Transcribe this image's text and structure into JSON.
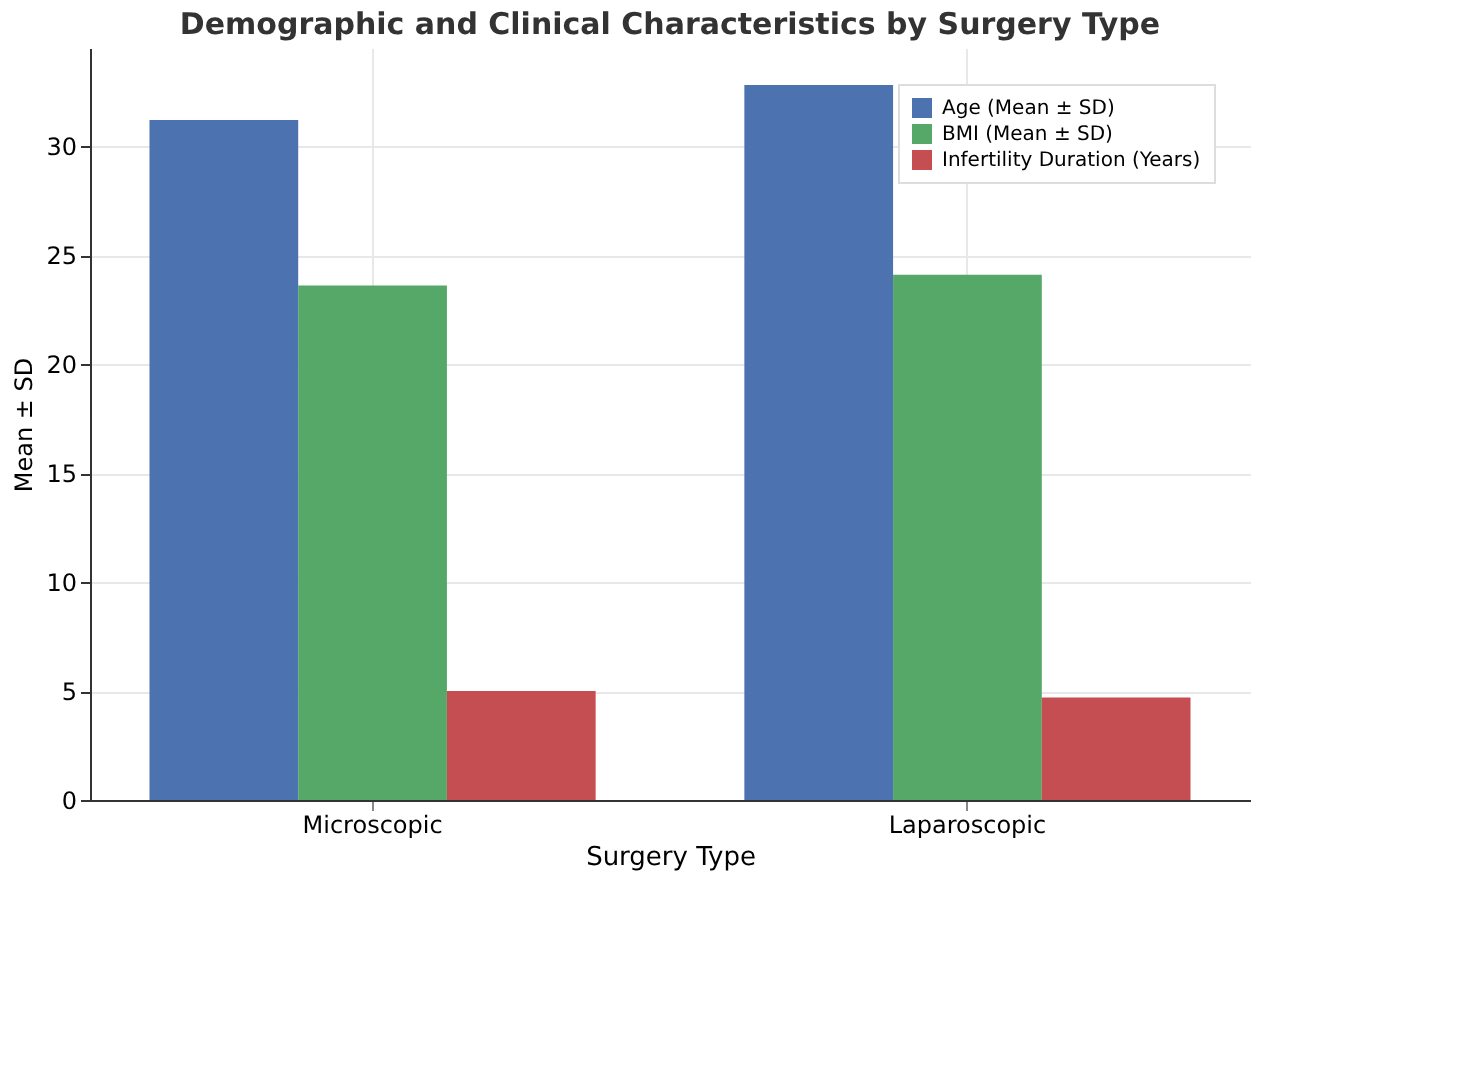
{
  "chart_data": {
    "type": "bar",
    "title": "Demographic and Clinical Characteristics by Surgery Type",
    "xlabel": "Surgery Type",
    "ylabel": "Mean ± SD",
    "categories": [
      "Microscopic",
      "Laparoscopic"
    ],
    "series": [
      {
        "name": "Age (Mean ± SD)",
        "color": "#4c72b0",
        "values": [
          31.2,
          32.8
        ]
      },
      {
        "name": "BMI (Mean ± SD)",
        "color": "#55a868",
        "values": [
          23.6,
          24.1
        ]
      },
      {
        "name": "Infertility Duration (Years)",
        "color": "#c44e52",
        "values": [
          5.0,
          4.7
        ]
      }
    ],
    "ylim": [
      0,
      34.5
    ],
    "yticks": [
      0,
      5,
      10,
      15,
      20,
      25,
      30
    ],
    "grid": true,
    "legend": "top right"
  }
}
